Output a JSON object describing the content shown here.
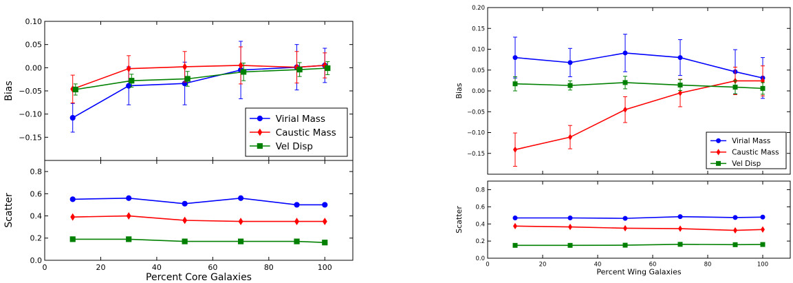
{
  "chart_data": [
    {
      "type": "line",
      "panel": "left-top",
      "ylabel": "Bias",
      "ylim": [
        -0.2,
        0.1
      ],
      "yticks": [
        0.1,
        0.05,
        0.0,
        -0.05,
        -0.1,
        -0.15
      ],
      "ytick_labels": [
        "0.10",
        "0.05",
        "0.00",
        "−0.05",
        "−0.10",
        "−0.15"
      ],
      "xlim": [
        0,
        110
      ],
      "grid": false,
      "legend": "lower-right",
      "series": [
        {
          "name": "Virial Mass",
          "color": "#0000ff",
          "marker": "circle",
          "x": [
            10,
            30,
            50,
            70,
            90,
            100
          ],
          "y": [
            -0.108,
            -0.039,
            -0.034,
            -0.005,
            0.001,
            0.005
          ],
          "err": [
            0.031,
            0.041,
            0.046,
            0.062,
            0.049,
            0.037
          ]
        },
        {
          "name": "Caustic Mass",
          "color": "#ff0000",
          "marker": "diamond",
          "x": [
            10,
            30,
            50,
            70,
            90,
            100
          ],
          "y": [
            -0.046,
            -0.002,
            0.002,
            0.005,
            0.001,
            0.005
          ],
          "err": [
            0.03,
            0.028,
            0.033,
            0.04,
            0.034,
            0.027
          ]
        },
        {
          "name": "Vel Disp",
          "color": "#008000",
          "marker": "square",
          "x": [
            11,
            31,
            51,
            71,
            91,
            101
          ],
          "y": [
            -0.047,
            -0.028,
            -0.024,
            -0.009,
            -0.004,
            -0.001
          ],
          "err": [
            0.012,
            0.014,
            0.016,
            0.019,
            0.015,
            0.014
          ]
        }
      ]
    },
    {
      "type": "line",
      "panel": "left-bottom",
      "xlabel": "Percent Core Galaxies",
      "ylabel": "Scatter",
      "ylim": [
        0.0,
        0.9
      ],
      "yticks": [
        0.0,
        0.2,
        0.4,
        0.6,
        0.8
      ],
      "ytick_labels": [
        "0.0",
        "0.2",
        "0.4",
        "0.6",
        "0.8"
      ],
      "xlim": [
        0,
        110
      ],
      "xticks": [
        0,
        20,
        40,
        60,
        80,
        100
      ],
      "xtick_labels": [
        "0",
        "20",
        "40",
        "60",
        "80",
        "100"
      ],
      "grid": false,
      "series": [
        {
          "name": "Virial Mass",
          "color": "#0000ff",
          "marker": "circle",
          "x": [
            10,
            30,
            50,
            70,
            90,
            100
          ],
          "y": [
            0.55,
            0.56,
            0.51,
            0.56,
            0.5,
            0.5
          ]
        },
        {
          "name": "Caustic Mass",
          "color": "#ff0000",
          "marker": "diamond",
          "x": [
            10,
            30,
            50,
            70,
            90,
            100
          ],
          "y": [
            0.39,
            0.4,
            0.36,
            0.35,
            0.35,
            0.35
          ]
        },
        {
          "name": "Vel Disp",
          "color": "#008000",
          "marker": "square",
          "x": [
            10,
            30,
            50,
            70,
            90,
            100
          ],
          "y": [
            0.19,
            0.19,
            0.17,
            0.17,
            0.17,
            0.16
          ]
        }
      ]
    },
    {
      "type": "line",
      "panel": "right-top",
      "ylabel": "Bias",
      "ylim": [
        -0.2,
        0.2
      ],
      "yticks": [
        0.2,
        0.15,
        0.1,
        0.05,
        0.0,
        -0.05,
        -0.1,
        -0.15
      ],
      "ytick_labels": [
        "0.20",
        "0.15",
        "0.10",
        "0.05",
        "0.00",
        "−0.05",
        "−0.10",
        "−0.15"
      ],
      "xlim": [
        0,
        110
      ],
      "grid": false,
      "legend": "lower-right",
      "series": [
        {
          "name": "Virial Mass",
          "color": "#0000ff",
          "marker": "circle",
          "x": [
            10,
            30,
            50,
            70,
            90,
            100
          ],
          "y": [
            0.08,
            0.068,
            0.091,
            0.08,
            0.046,
            0.031
          ],
          "err": [
            0.049,
            0.034,
            0.045,
            0.043,
            0.053,
            0.049
          ]
        },
        {
          "name": "Caustic Mass",
          "color": "#ff0000",
          "marker": "diamond",
          "x": [
            10,
            30,
            50,
            70,
            90,
            100
          ],
          "y": [
            -0.141,
            -0.111,
            -0.045,
            -0.005,
            0.024,
            0.024
          ],
          "err": [
            0.04,
            0.028,
            0.031,
            0.033,
            0.033,
            0.036
          ]
        },
        {
          "name": "Vel Disp",
          "color": "#008000",
          "marker": "square",
          "x": [
            10,
            30,
            50,
            70,
            90,
            100
          ],
          "y": [
            0.017,
            0.013,
            0.02,
            0.014,
            0.009,
            0.006
          ],
          "err": [
            0.017,
            0.011,
            0.015,
            0.013,
            0.016,
            0.014
          ]
        }
      ]
    },
    {
      "type": "line",
      "panel": "right-bottom",
      "xlabel": "Percent Wing Galaxies",
      "ylabel": "Scatter",
      "ylim": [
        0.0,
        0.9
      ],
      "yticks": [
        0.0,
        0.2,
        0.4,
        0.6,
        0.8
      ],
      "ytick_labels": [
        "0.0",
        "0.2",
        "0.4",
        "0.6",
        "0.8"
      ],
      "xlim": [
        0,
        110
      ],
      "xticks": [
        0,
        20,
        40,
        60,
        80,
        100
      ],
      "xtick_labels": [
        "0",
        "20",
        "40",
        "60",
        "80",
        "100"
      ],
      "grid": false,
      "series": [
        {
          "name": "Virial Mass",
          "color": "#0000ff",
          "marker": "circle",
          "x": [
            10,
            30,
            50,
            70,
            90,
            100
          ],
          "y": [
            0.47,
            0.47,
            0.465,
            0.485,
            0.475,
            0.48
          ]
        },
        {
          "name": "Caustic Mass",
          "color": "#ff0000",
          "marker": "diamond",
          "x": [
            10,
            30,
            50,
            70,
            90,
            100
          ],
          "y": [
            0.375,
            0.365,
            0.35,
            0.345,
            0.325,
            0.335
          ]
        },
        {
          "name": "Vel Disp",
          "color": "#008000",
          "marker": "square",
          "x": [
            10,
            30,
            50,
            70,
            90,
            100
          ],
          "y": [
            0.15,
            0.15,
            0.152,
            0.162,
            0.158,
            0.16
          ]
        }
      ]
    }
  ]
}
